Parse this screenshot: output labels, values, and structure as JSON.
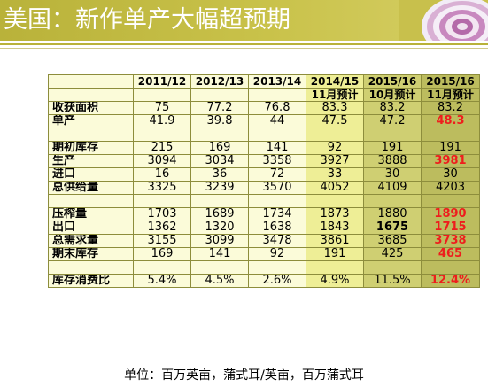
{
  "title": "美国：新作单产大幅超预期",
  "colors": {
    "banner": "#b9b23a",
    "grid_border": "#8d8d3c",
    "highlight": "#ee1d1d"
  },
  "table": {
    "header_row1": [
      "",
      "2011/12",
      "2012/13",
      "2013/14",
      "2014/15",
      "2015/16",
      "2015/16"
    ],
    "header_row2": [
      "",
      "",
      "",
      "",
      "11月预计",
      "10月预计",
      "11月预计"
    ],
    "rows": [
      {
        "label": "收获面积",
        "values": [
          "75",
          "77.2",
          "76.8",
          "83.3",
          "83.2",
          "83.2"
        ]
      },
      {
        "label": "单产",
        "values": [
          "41.9",
          "39.8",
          "44",
          "47.5",
          "47.2",
          "48.3"
        ]
      },
      {
        "label": "",
        "values": [
          "",
          "",
          "",
          "",
          "",
          ""
        ]
      },
      {
        "label": "期初库存",
        "values": [
          "215",
          "169",
          "141",
          "92",
          "191",
          "191"
        ]
      },
      {
        "label": "生产",
        "values": [
          "3094",
          "3034",
          "3358",
          "3927",
          "3888",
          "3981"
        ]
      },
      {
        "label": "进口",
        "values": [
          "16",
          "36",
          "72",
          "33",
          "30",
          "30"
        ]
      },
      {
        "label": "总供给量",
        "values": [
          "3325",
          "3239",
          "3570",
          "4052",
          "4109",
          "4203"
        ]
      },
      {
        "label": "",
        "values": [
          "",
          "",
          "",
          "",
          "",
          ""
        ]
      },
      {
        "label": "压榨量",
        "values": [
          "1703",
          "1689",
          "1734",
          "1873",
          "1880",
          "1890"
        ]
      },
      {
        "label": "出口",
        "values": [
          "1362",
          "1320",
          "1638",
          "1843",
          "1675",
          "1715"
        ]
      },
      {
        "label": "总需求量",
        "values": [
          "3155",
          "3099",
          "3478",
          "3861",
          "3685",
          "3738"
        ]
      },
      {
        "label": "期末库存",
        "values": [
          "169",
          "141",
          "92",
          "191",
          "425",
          "465"
        ]
      },
      {
        "label": "",
        "values": [
          "",
          "",
          "",
          "",
          "",
          ""
        ]
      },
      {
        "label": "库存消费比",
        "values": [
          "5.4%",
          "4.5%",
          "2.6%",
          "4.9%",
          "11.5%",
          "12.4%"
        ]
      }
    ]
  },
  "chart_data": {
    "type": "table",
    "title": "美国：新作单产大幅超预期",
    "columns": [
      "2011/12",
      "2012/13",
      "2013/14",
      "2014/15 11月预计",
      "2015/16 10月预计",
      "2015/16 11月预计"
    ],
    "rows": [
      {
        "name": "收获面积",
        "values": [
          75,
          77.2,
          76.8,
          83.3,
          83.2,
          83.2
        ]
      },
      {
        "name": "单产",
        "values": [
          41.9,
          39.8,
          44,
          47.5,
          47.2,
          48.3
        ]
      },
      {
        "name": "期初库存",
        "values": [
          215,
          169,
          141,
          92,
          191,
          191
        ]
      },
      {
        "name": "生产",
        "values": [
          3094,
          3034,
          3358,
          3927,
          3888,
          3981
        ]
      },
      {
        "name": "进口",
        "values": [
          16,
          36,
          72,
          33,
          30,
          30
        ]
      },
      {
        "name": "总供给量",
        "values": [
          3325,
          3239,
          3570,
          4052,
          4109,
          4203
        ]
      },
      {
        "name": "压榨量",
        "values": [
          1703,
          1689,
          1734,
          1873,
          1880,
          1890
        ]
      },
      {
        "name": "出口",
        "values": [
          1362,
          1320,
          1638,
          1843,
          1675,
          1715
        ]
      },
      {
        "name": "总需求量",
        "values": [
          3155,
          3099,
          3478,
          3861,
          3685,
          3738
        ]
      },
      {
        "name": "期末库存",
        "values": [
          169,
          141,
          92,
          191,
          425,
          465
        ]
      },
      {
        "name": "库存消费比",
        "values": [
          "5.4%",
          "4.5%",
          "2.6%",
          "4.9%",
          "11.5%",
          "12.4%"
        ]
      }
    ]
  },
  "unit_note": "单位：百万英亩，蒲式耳/英亩，百万蒲式耳"
}
